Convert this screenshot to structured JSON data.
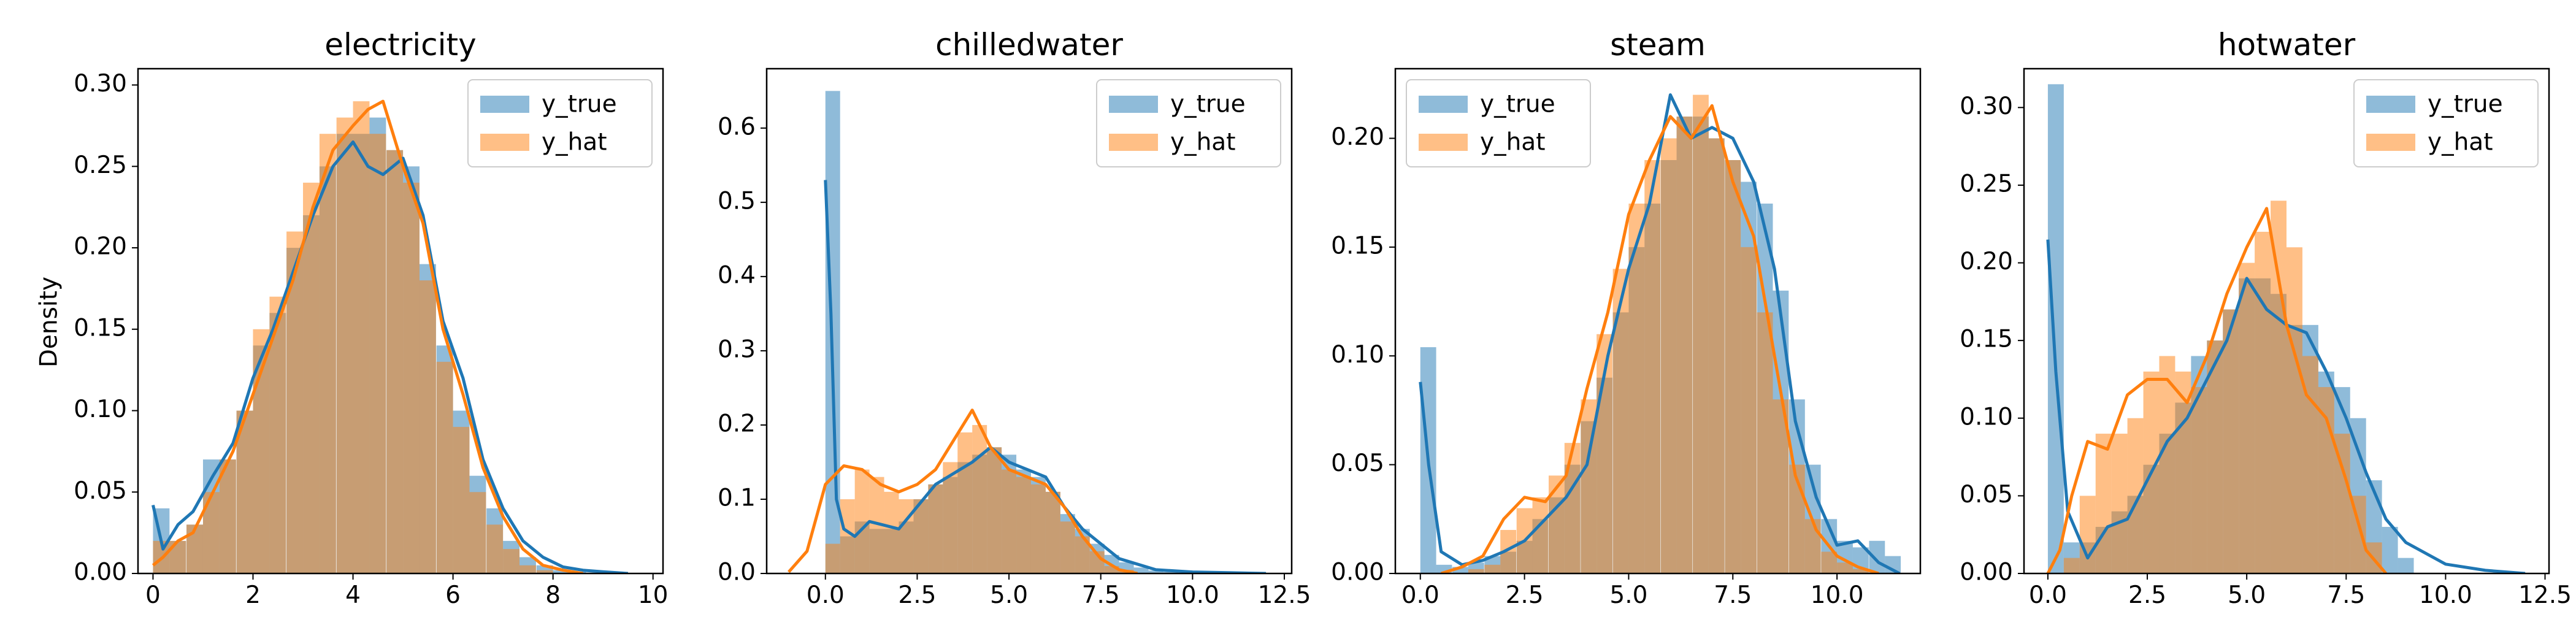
{
  "figure": {
    "ylabel": "Density"
  },
  "legend": {
    "true_label": "y_true",
    "hat_label": "y_hat",
    "placement": [
      "upper right",
      "upper right",
      "upper left",
      "upper right"
    ]
  },
  "colors": {
    "true": "#1f77b4",
    "hat": "#ff7f0e"
  },
  "chart_data": [
    {
      "type": "histogram+kde",
      "title": "electricity",
      "xlim": [
        -0.3,
        10.2
      ],
      "ylim": [
        0,
        0.31
      ],
      "xticks": [
        0,
        2,
        4,
        6,
        8,
        10
      ],
      "xticklabels": [
        "0",
        "2",
        "4",
        "6",
        "8",
        "10"
      ],
      "yticks": [
        0,
        0.05,
        0.1,
        0.15,
        0.2,
        0.25,
        0.3
      ],
      "yticklabels": [
        "0.00",
        "0.05",
        "0.10",
        "0.15",
        "0.20",
        "0.25",
        "0.30"
      ],
      "bins": [
        0,
        0.33,
        0.67,
        1,
        1.33,
        1.67,
        2,
        2.33,
        2.67,
        3,
        3.33,
        3.67,
        4,
        4.33,
        4.67,
        5,
        5.33,
        5.67,
        6,
        6.33,
        6.67,
        7,
        7.33,
        7.67,
        8,
        8.33,
        8.67,
        9,
        9.33,
        9.67
      ],
      "series": [
        {
          "name": "y_true",
          "hist": [
            0.04,
            0.02,
            0.03,
            0.07,
            0.07,
            0.1,
            0.14,
            0.16,
            0.2,
            0.22,
            0.25,
            0.27,
            0.27,
            0.28,
            0.26,
            0.25,
            0.19,
            0.14,
            0.1,
            0.06,
            0.04,
            0.02,
            0.01,
            0.005,
            0.002,
            0.001,
            0,
            0,
            0,
            0
          ],
          "kde_x": [
            0,
            0.2,
            0.5,
            0.8,
            1.2,
            1.6,
            2,
            2.4,
            2.8,
            3.2,
            3.6,
            4,
            4.3,
            4.6,
            5,
            5.4,
            5.8,
            6.2,
            6.6,
            7,
            7.4,
            7.8,
            8.2,
            8.6,
            9,
            9.5
          ],
          "kde_y": [
            0.042,
            0.015,
            0.03,
            0.038,
            0.06,
            0.08,
            0.12,
            0.15,
            0.185,
            0.22,
            0.25,
            0.265,
            0.25,
            0.245,
            0.255,
            0.22,
            0.155,
            0.12,
            0.07,
            0.04,
            0.02,
            0.01,
            0.004,
            0.002,
            0.001,
            0
          ]
        },
        {
          "name": "y_hat",
          "hist": [
            0.02,
            0.02,
            0.03,
            0.05,
            0.07,
            0.1,
            0.15,
            0.17,
            0.21,
            0.24,
            0.27,
            0.28,
            0.29,
            0.27,
            0.26,
            0.24,
            0.18,
            0.13,
            0.09,
            0.05,
            0.03,
            0.015,
            0.005,
            0.002,
            0,
            0,
            0,
            0,
            0,
            0
          ],
          "kde_x": [
            0,
            0.2,
            0.5,
            0.8,
            1.2,
            1.6,
            2,
            2.4,
            2.8,
            3.2,
            3.6,
            4,
            4.3,
            4.6,
            5,
            5.4,
            5.8,
            6.2,
            6.6,
            7,
            7.4,
            7.8,
            8.2,
            8.6
          ],
          "kde_y": [
            0.005,
            0.01,
            0.02,
            0.025,
            0.05,
            0.075,
            0.11,
            0.145,
            0.18,
            0.225,
            0.26,
            0.275,
            0.285,
            0.29,
            0.25,
            0.215,
            0.15,
            0.11,
            0.065,
            0.035,
            0.015,
            0.005,
            0.002,
            0
          ]
        }
      ]
    },
    {
      "type": "histogram+kde",
      "title": "chilledwater",
      "xlim": [
        -1.6,
        12.7
      ],
      "ylim": [
        0,
        0.68
      ],
      "xticks": [
        0,
        2.5,
        5,
        7.5,
        10,
        12.5
      ],
      "xticklabels": [
        "0.0",
        "2.5",
        "5.0",
        "7.5",
        "10.0",
        "12.5"
      ],
      "yticks": [
        0,
        0.1,
        0.2,
        0.3,
        0.4,
        0.5,
        0.6
      ],
      "yticklabels": [
        "0.0",
        "0.1",
        "0.2",
        "0.3",
        "0.4",
        "0.5",
        "0.6"
      ],
      "bins": [
        0,
        0.4,
        0.8,
        1.2,
        1.6,
        2,
        2.4,
        2.8,
        3.2,
        3.6,
        4,
        4.4,
        4.8,
        5.2,
        5.6,
        6,
        6.4,
        6.8,
        7.2,
        7.6,
        8,
        8.4,
        8.8,
        9.2,
        9.6,
        10,
        10.4,
        10.8,
        11.2,
        11.6
      ],
      "series": [
        {
          "name": "y_true",
          "hist": [
            0.65,
            0.05,
            0.07,
            0.06,
            0.06,
            0.07,
            0.1,
            0.12,
            0.13,
            0.15,
            0.16,
            0.17,
            0.16,
            0.14,
            0.13,
            0.11,
            0.08,
            0.06,
            0.04,
            0.025,
            0.015,
            0.008,
            0.004,
            0.002,
            0.001,
            0,
            0,
            0,
            0,
            0
          ],
          "kde_x": [
            0,
            0.15,
            0.3,
            0.5,
            0.8,
            1.2,
            1.6,
            2,
            2.5,
            3,
            3.5,
            4,
            4.5,
            5,
            5.5,
            6,
            6.5,
            7,
            7.5,
            8,
            9,
            10,
            11,
            12
          ],
          "kde_y": [
            0.53,
            0.35,
            0.1,
            0.06,
            0.05,
            0.07,
            0.065,
            0.06,
            0.09,
            0.12,
            0.135,
            0.15,
            0.17,
            0.15,
            0.14,
            0.13,
            0.09,
            0.06,
            0.04,
            0.02,
            0.005,
            0.002,
            0.001,
            0
          ]
        },
        {
          "name": "y_hat",
          "hist": [
            0.04,
            0.1,
            0.14,
            0.13,
            0.11,
            0.1,
            0.1,
            0.12,
            0.15,
            0.19,
            0.2,
            0.17,
            0.14,
            0.13,
            0.12,
            0.11,
            0.07,
            0.05,
            0.03,
            0.01,
            0.005,
            0,
            0,
            0,
            0,
            0,
            0,
            0,
            0,
            0
          ],
          "kde_x": [
            -1,
            -0.5,
            0,
            0.5,
            1,
            1.5,
            2,
            2.5,
            3,
            3.5,
            4,
            4.5,
            5,
            5.5,
            6,
            6.5,
            7,
            7.5,
            8,
            8.5
          ],
          "kde_y": [
            0.002,
            0.03,
            0.12,
            0.145,
            0.14,
            0.12,
            0.11,
            0.12,
            0.14,
            0.18,
            0.22,
            0.17,
            0.14,
            0.13,
            0.12,
            0.09,
            0.05,
            0.02,
            0.005,
            0
          ]
        }
      ]
    },
    {
      "type": "histogram+kde",
      "title": "steam",
      "xlim": [
        -0.6,
        12.0
      ],
      "ylim": [
        0,
        0.232
      ],
      "xticks": [
        0,
        2.5,
        5,
        7.5,
        10
      ],
      "xticklabels": [
        "0.0",
        "2.5",
        "5.0",
        "7.5",
        "10.0"
      ],
      "yticks": [
        0,
        0.05,
        0.1,
        0.15,
        0.2
      ],
      "yticklabels": [
        "0.00",
        "0.05",
        "0.10",
        "0.15",
        "0.20"
      ],
      "bins": [
        0,
        0.38,
        0.77,
        1.15,
        1.54,
        1.92,
        2.31,
        2.69,
        3.08,
        3.46,
        3.85,
        4.23,
        4.62,
        5,
        5.38,
        5.77,
        6.15,
        6.54,
        6.92,
        7.31,
        7.69,
        8.08,
        8.46,
        8.85,
        9.23,
        9.62,
        10,
        10.38,
        10.77,
        11.15
      ],
      "series": [
        {
          "name": "y_true",
          "hist": [
            0.104,
            0.004,
            0.003,
            0.005,
            0.008,
            0.01,
            0.015,
            0.025,
            0.035,
            0.05,
            0.07,
            0.09,
            0.12,
            0.15,
            0.17,
            0.19,
            0.21,
            0.21,
            0.2,
            0.19,
            0.18,
            0.17,
            0.13,
            0.08,
            0.05,
            0.025,
            0.015,
            0.012,
            0.015,
            0.008
          ],
          "kde_x": [
            0,
            0.2,
            0.5,
            1,
            1.5,
            2,
            2.5,
            3,
            3.5,
            4,
            4.5,
            5,
            5.5,
            6,
            6.5,
            7,
            7.5,
            8,
            8.5,
            9,
            9.5,
            10,
            10.5,
            11,
            11.5
          ],
          "kde_y": [
            0.088,
            0.05,
            0.01,
            0.004,
            0.006,
            0.01,
            0.015,
            0.025,
            0.035,
            0.05,
            0.1,
            0.14,
            0.17,
            0.22,
            0.2,
            0.205,
            0.2,
            0.18,
            0.14,
            0.07,
            0.035,
            0.013,
            0.015,
            0.005,
            0
          ]
        },
        {
          "name": "y_hat",
          "hist": [
            0,
            0,
            0,
            0.002,
            0.004,
            0.02,
            0.03,
            0.035,
            0.045,
            0.06,
            0.08,
            0.11,
            0.14,
            0.17,
            0.19,
            0.2,
            0.21,
            0.22,
            0.2,
            0.19,
            0.15,
            0.12,
            0.08,
            0.05,
            0.025,
            0.01,
            0.005,
            0.002,
            0,
            0
          ],
          "kde_x": [
            0.5,
            1,
            1.5,
            2,
            2.5,
            3,
            3.5,
            4,
            4.5,
            5,
            5.5,
            6,
            6.5,
            7,
            7.5,
            8,
            8.5,
            9,
            9.5,
            10,
            10.5,
            11
          ],
          "kde_y": [
            0,
            0.003,
            0.008,
            0.025,
            0.035,
            0.033,
            0.045,
            0.085,
            0.12,
            0.165,
            0.19,
            0.21,
            0.2,
            0.215,
            0.18,
            0.155,
            0.1,
            0.045,
            0.02,
            0.008,
            0.003,
            0
          ]
        }
      ]
    },
    {
      "type": "histogram+kde",
      "title": "hotwater",
      "xlim": [
        -0.6,
        12.6
      ],
      "ylim": [
        0,
        0.325
      ],
      "xticks": [
        0,
        2.5,
        5,
        7.5,
        10,
        12.5
      ],
      "xticklabels": [
        "0.0",
        "2.5",
        "5.0",
        "7.5",
        "10.0",
        "12.5"
      ],
      "yticks": [
        0,
        0.05,
        0.1,
        0.15,
        0.2,
        0.25,
        0.3
      ],
      "yticklabels": [
        "0.00",
        "0.05",
        "0.10",
        "0.15",
        "0.20",
        "0.25",
        "0.30"
      ],
      "bins": [
        0,
        0.4,
        0.8,
        1.2,
        1.6,
        2,
        2.4,
        2.8,
        3.2,
        3.6,
        4,
        4.4,
        4.8,
        5.2,
        5.6,
        6,
        6.4,
        6.8,
        7.2,
        7.6,
        8,
        8.4,
        8.8
      ],
      "series": [
        {
          "name": "y_true",
          "hist": [
            0.315,
            0.02,
            0.02,
            0.03,
            0.04,
            0.05,
            0.07,
            0.09,
            0.11,
            0.14,
            0.15,
            0.17,
            0.19,
            0.19,
            0.18,
            0.16,
            0.16,
            0.13,
            0.12,
            0.1,
            0.06,
            0.03,
            0.01
          ],
          "kde_x": [
            0,
            0.2,
            0.5,
            1,
            1.5,
            2,
            2.5,
            3,
            3.5,
            4,
            4.5,
            5,
            5.5,
            6,
            6.5,
            7,
            7.5,
            8,
            8.5,
            9,
            10,
            11,
            12
          ],
          "kde_y": [
            0.215,
            0.13,
            0.04,
            0.01,
            0.03,
            0.035,
            0.06,
            0.085,
            0.1,
            0.125,
            0.15,
            0.19,
            0.17,
            0.16,
            0.155,
            0.13,
            0.1,
            0.065,
            0.035,
            0.02,
            0.006,
            0.002,
            0
          ]
        },
        {
          "name": "y_hat",
          "hist": [
            0,
            0.01,
            0.05,
            0.09,
            0.09,
            0.1,
            0.13,
            0.14,
            0.13,
            0.12,
            0.15,
            0.17,
            0.2,
            0.22,
            0.24,
            0.21,
            0.14,
            0.12,
            0.09,
            0.05,
            0.02,
            0,
            0
          ],
          "kde_x": [
            0,
            0.3,
            0.6,
            1,
            1.5,
            2,
            2.5,
            3,
            3.5,
            4,
            4.5,
            5,
            5.5,
            6,
            6.5,
            7,
            7.5,
            8,
            8.5
          ],
          "kde_y": [
            0,
            0.015,
            0.05,
            0.085,
            0.08,
            0.115,
            0.125,
            0.125,
            0.11,
            0.14,
            0.18,
            0.21,
            0.235,
            0.16,
            0.115,
            0.1,
            0.06,
            0.015,
            0
          ]
        }
      ]
    }
  ]
}
